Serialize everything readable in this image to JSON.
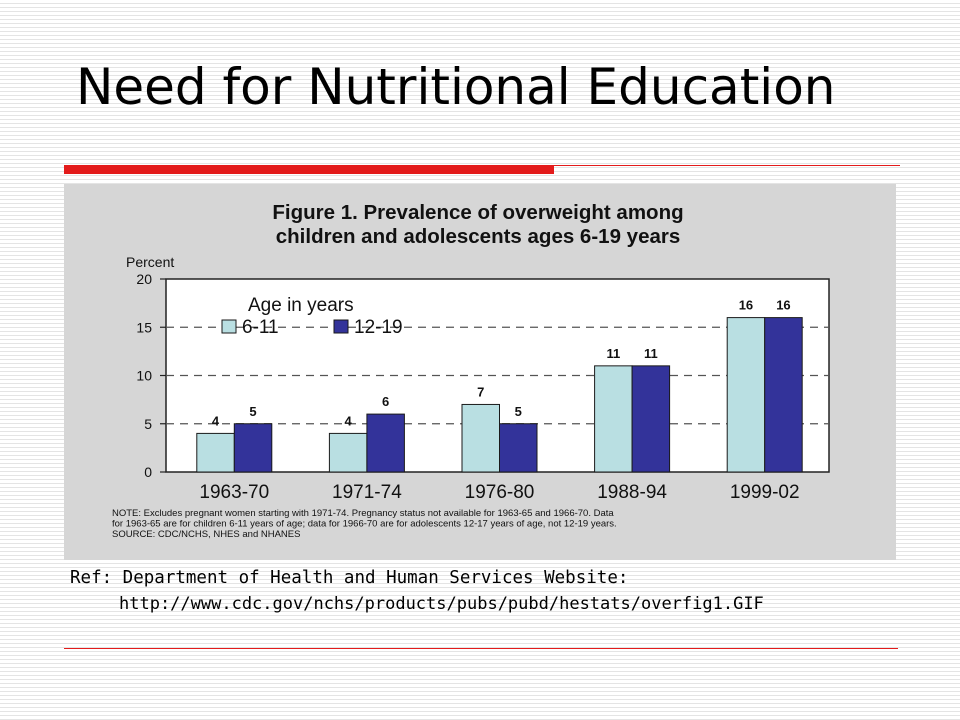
{
  "slide": {
    "title": "Need for Nutritional Education",
    "ref_line1": "Ref: Department of Health and Human Services Website:",
    "ref_line2": "http://www.cdc.gov/nchs/products/pubs/pubd/hestats/overfig1.GIF"
  },
  "colors": {
    "accent_red": "#e31b1b",
    "series_light": "#b9dfe2",
    "series_dark": "#33339a",
    "figure_bg": "#d6d6d6"
  },
  "chart_data": {
    "type": "bar",
    "title_line1": "Figure 1. Prevalence of overweight among",
    "title_line2": "children and adolescents ages 6-19 years",
    "ylabel": "Percent",
    "xlabel": "",
    "ylim": [
      0,
      20
    ],
    "yticks": [
      0,
      5,
      10,
      15,
      20
    ],
    "grid": "dashed horizontal",
    "legend_title": "Age in years",
    "legend_position": "top-left",
    "categories": [
      "1963-70",
      "1971-74",
      "1976-80",
      "1988-94",
      "1999-02"
    ],
    "series": [
      {
        "name": "6-11",
        "values": [
          4,
          4,
          7,
          11,
          16
        ]
      },
      {
        "name": "12-19",
        "values": [
          5,
          6,
          5,
          11,
          16
        ]
      }
    ],
    "note_lines": [
      "NOTE:  Excludes pregnant women starting with 1971-74.  Pregnancy status not available for 1963-65 and 1966-70.  Data",
      "for 1963-65 are for children 6-11 years of age; data for 1966-70 are for adolescents 12-17 years of age, not 12-19 years.",
      "SOURCE: CDC/NCHS, NHES and NHANES"
    ]
  }
}
